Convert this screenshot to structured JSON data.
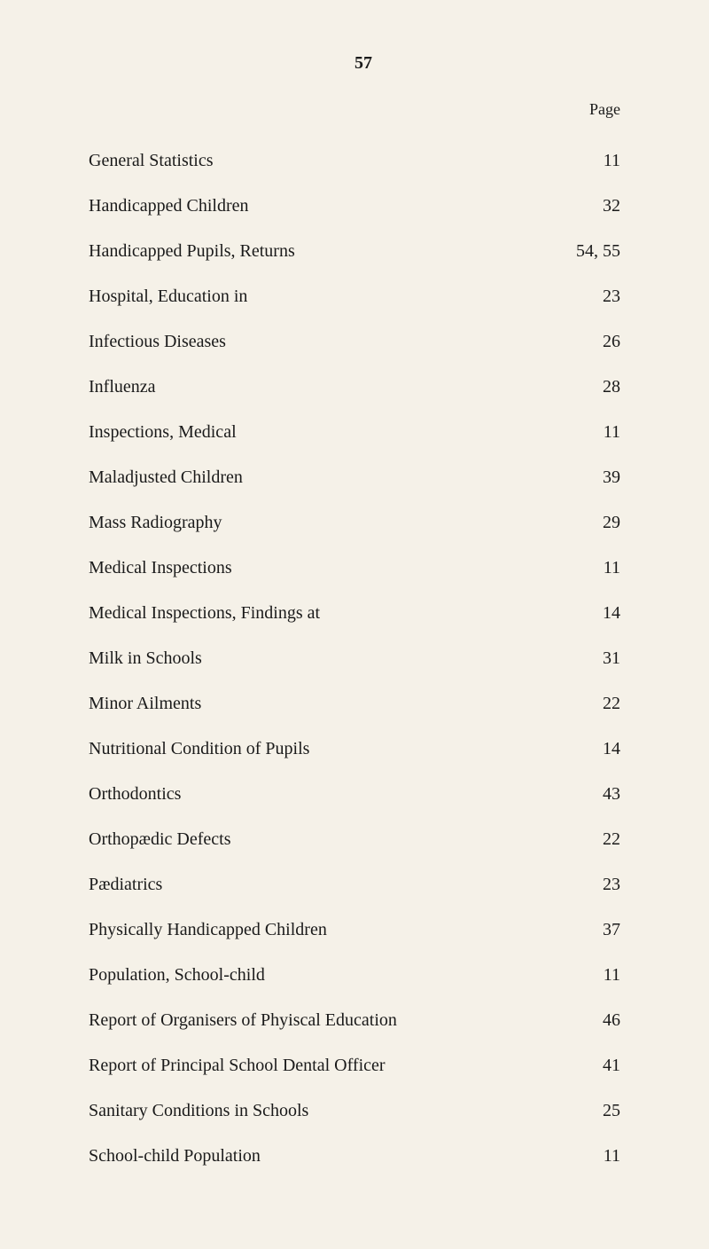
{
  "page_number": "57",
  "column_header": "Page",
  "entries": [
    {
      "label": "General Statistics",
      "page": "11"
    },
    {
      "label": "Handicapped Children",
      "page": "32"
    },
    {
      "label": "Handicapped Pupils, Returns",
      "page": "54, 55"
    },
    {
      "label": "Hospital, Education in",
      "page": "23"
    },
    {
      "label": "Infectious Diseases",
      "page": "26"
    },
    {
      "label": "Influenza",
      "page": "28"
    },
    {
      "label": "Inspections, Medical",
      "page": "11"
    },
    {
      "label": "Maladjusted Children",
      "page": "39"
    },
    {
      "label": "Mass Radiography",
      "page": "29"
    },
    {
      "label": "Medical Inspections",
      "page": "11"
    },
    {
      "label": "Medical Inspections, Findings at",
      "page": "14"
    },
    {
      "label": "Milk in Schools",
      "page": "31"
    },
    {
      "label": "Minor Ailments",
      "page": "22"
    },
    {
      "label": "Nutritional Condition of Pupils",
      "page": "14"
    },
    {
      "label": "Orthodontics",
      "page": "43"
    },
    {
      "label": "Orthopædic Defects",
      "page": "22"
    },
    {
      "label": "Pædiatrics",
      "page": "23"
    },
    {
      "label": "Physically Handicapped Children",
      "page": "37"
    },
    {
      "label": "Population, School-child",
      "page": "11"
    },
    {
      "label": "Report of Organisers of Phyiscal Education",
      "page": "46"
    },
    {
      "label": "Report of Principal School Dental Officer",
      "page": "41"
    },
    {
      "label": "Sanitary Conditions in Schools",
      "page": "25"
    },
    {
      "label": "School-child Population",
      "page": "11"
    }
  ],
  "styling": {
    "background_color": "#f5f1e8",
    "text_color": "#1a1a1a",
    "font_family": "Georgia, serif",
    "body_font_size": 20,
    "page_number_font_size": 20
  }
}
